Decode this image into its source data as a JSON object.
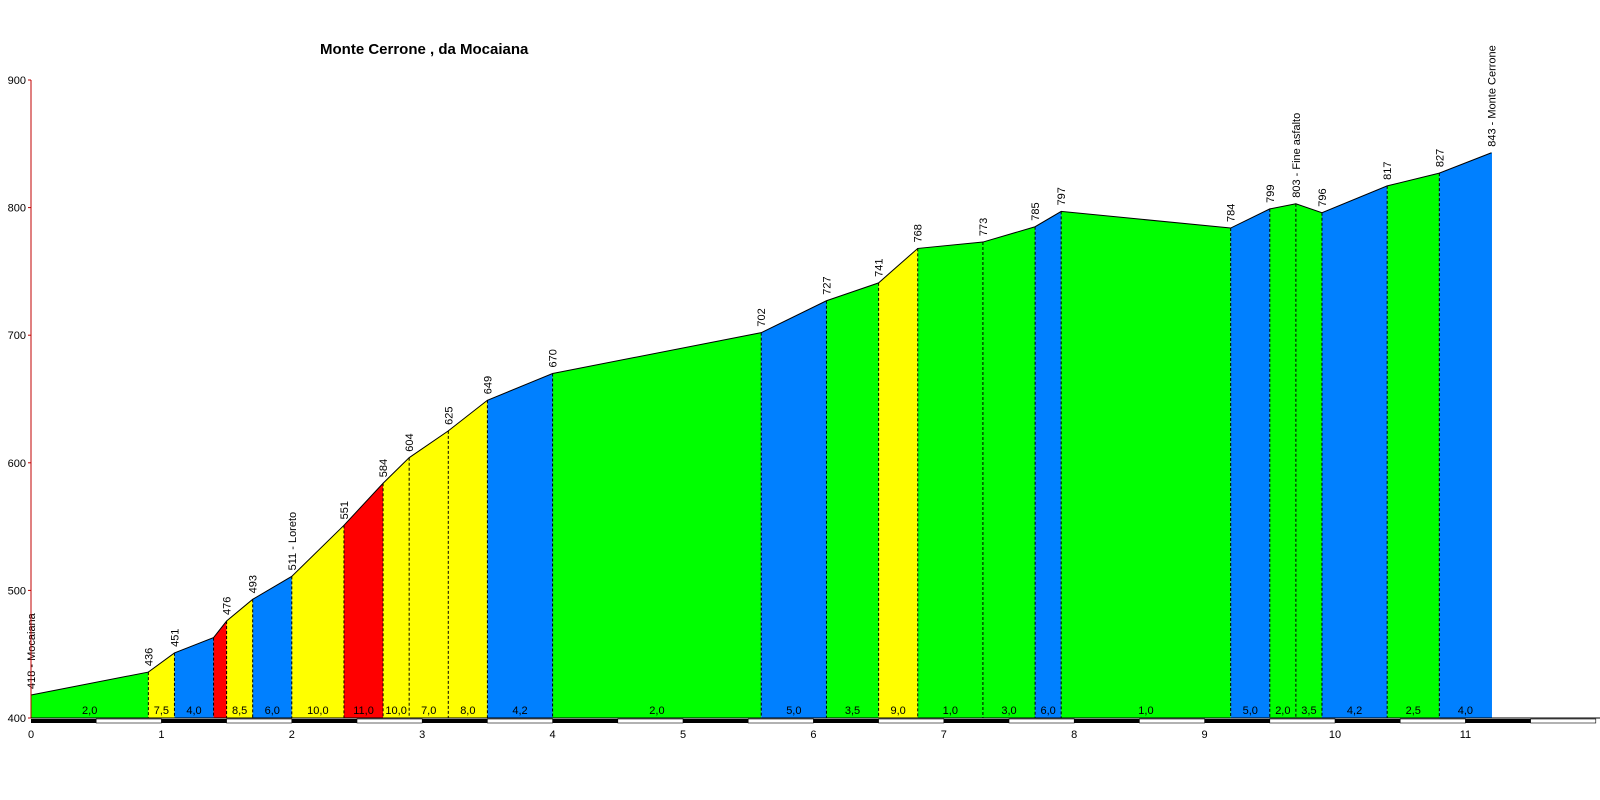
{
  "chart_data": {
    "type": "area",
    "title": "Monte Cerrone , da Mocaiana",
    "xlabel": "",
    "ylabel": "",
    "xlim": [
      0,
      11.55
    ],
    "ylim": [
      400,
      900
    ],
    "x_ticks": [
      "0",
      "1",
      "2",
      "3",
      "4",
      "5",
      "6",
      "7",
      "8",
      "9",
      "10",
      "11"
    ],
    "y_ticks": [
      "400",
      "500",
      "600",
      "700",
      "800",
      "900"
    ],
    "grid": false,
    "legend": "none",
    "colors": {
      "green": "#00ff00",
      "yellow": "#ffff00",
      "blue": "#0080ff",
      "red": "#ff0000",
      "axis": "#c00000",
      "outline": "#000000"
    },
    "profile": [
      {
        "x": 0.0,
        "elev": 418,
        "label": "418 - Mocaiana"
      },
      {
        "x": 0.9,
        "elev": 436,
        "label": "436"
      },
      {
        "x": 1.1,
        "elev": 451,
        "label": "451"
      },
      {
        "x": 1.4,
        "elev": 463,
        "label": ""
      },
      {
        "x": 1.5,
        "elev": 476,
        "label": "476"
      },
      {
        "x": 1.7,
        "elev": 493,
        "label": "493"
      },
      {
        "x": 2.0,
        "elev": 511,
        "label": "511 - Loreto"
      },
      {
        "x": 2.4,
        "elev": 551,
        "label": "551"
      },
      {
        "x": 2.7,
        "elev": 584,
        "label": "584"
      },
      {
        "x": 2.9,
        "elev": 604,
        "label": "604"
      },
      {
        "x": 3.2,
        "elev": 625,
        "label": "625"
      },
      {
        "x": 3.5,
        "elev": 649,
        "label": "649"
      },
      {
        "x": 4.0,
        "elev": 670,
        "label": "670"
      },
      {
        "x": 5.6,
        "elev": 702,
        "label": "702"
      },
      {
        "x": 6.1,
        "elev": 727,
        "label": "727"
      },
      {
        "x": 6.5,
        "elev": 741,
        "label": "741"
      },
      {
        "x": 6.8,
        "elev": 768,
        "label": "768"
      },
      {
        "x": 7.3,
        "elev": 773,
        "label": "773"
      },
      {
        "x": 7.7,
        "elev": 785,
        "label": "785"
      },
      {
        "x": 7.9,
        "elev": 797,
        "label": "797"
      },
      {
        "x": 9.2,
        "elev": 784,
        "label": "784"
      },
      {
        "x": 9.5,
        "elev": 799,
        "label": "799"
      },
      {
        "x": 9.7,
        "elev": 803,
        "label": "803 - Fine asfalto"
      },
      {
        "x": 9.9,
        "elev": 796,
        "label": "796"
      },
      {
        "x": 10.4,
        "elev": 817,
        "label": "817"
      },
      {
        "x": 10.8,
        "elev": 827,
        "label": "827"
      },
      {
        "x": 11.2,
        "elev": 843,
        "label": "843 - Monte Cerrone"
      }
    ],
    "segments": [
      {
        "gradient": "2,0",
        "color": "green"
      },
      {
        "gradient": "7,5",
        "color": "yellow"
      },
      {
        "gradient": "4,0",
        "color": "blue"
      },
      {
        "gradient": "",
        "color": "red"
      },
      {
        "gradient": "8,5",
        "color": "yellow"
      },
      {
        "gradient": "6,0",
        "color": "blue"
      },
      {
        "gradient": "10,0",
        "color": "yellow"
      },
      {
        "gradient": "11,0",
        "color": "red"
      },
      {
        "gradient": "10,0",
        "color": "yellow"
      },
      {
        "gradient": "7,0",
        "color": "yellow"
      },
      {
        "gradient": "8,0",
        "color": "yellow"
      },
      {
        "gradient": "4,2",
        "color": "blue"
      },
      {
        "gradient": "2,0",
        "color": "green"
      },
      {
        "gradient": "5,0",
        "color": "blue"
      },
      {
        "gradient": "3,5",
        "color": "green"
      },
      {
        "gradient": "9,0",
        "color": "yellow"
      },
      {
        "gradient": "1,0",
        "color": "green"
      },
      {
        "gradient": "3,0",
        "color": "green"
      },
      {
        "gradient": "6,0",
        "color": "blue"
      },
      {
        "gradient": "1,0",
        "color": "green"
      },
      {
        "gradient": "5,0",
        "color": "blue"
      },
      {
        "gradient": "2,0",
        "color": "green"
      },
      {
        "gradient": "3,5",
        "color": "green"
      },
      {
        "gradient": "4,2",
        "color": "blue"
      },
      {
        "gradient": "2,5",
        "color": "green"
      },
      {
        "gradient": "4,0",
        "color": "blue"
      }
    ]
  }
}
